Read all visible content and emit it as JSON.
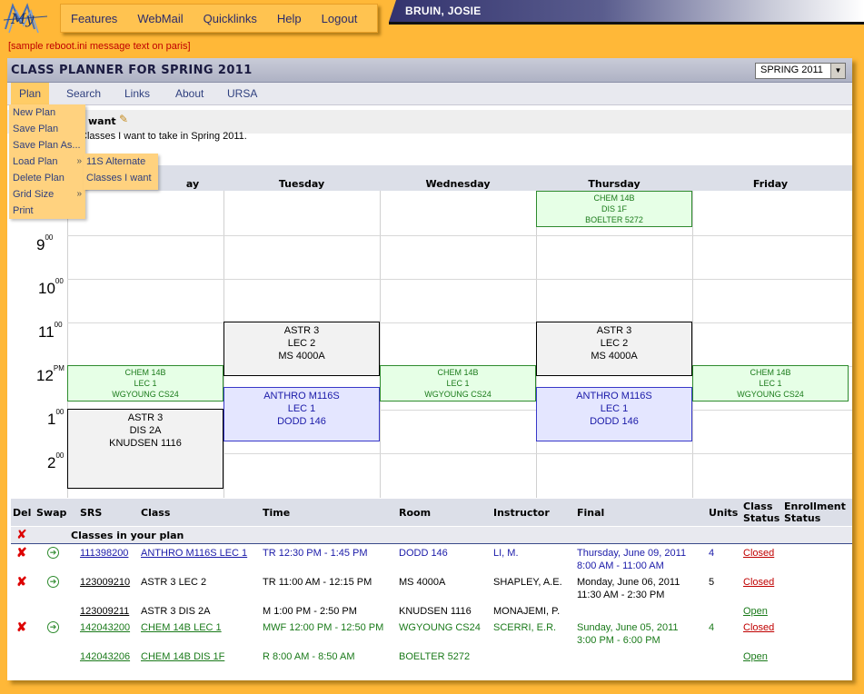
{
  "logo_text": "My",
  "topnav": [
    "Features",
    "WebMail",
    "Quicklinks",
    "Help",
    "Logout"
  ],
  "user_name": "BRUIN, JOSIE",
  "reboot_message": "[sample reboot.ini message text on paris]",
  "planner": {
    "title": "CLASS PLANNER FOR SPRING 2011",
    "term_select": "SPRING 2011"
  },
  "subnav": [
    "Plan",
    "Search",
    "Links",
    "About",
    "URSA"
  ],
  "plan_menu": [
    "New Plan",
    "Save Plan",
    "Save Plan As...",
    "Load Plan",
    "Delete Plan",
    "Grid Size",
    "Print"
  ],
  "load_submenu": [
    "11S Alternate",
    "Classes I want"
  ],
  "plan_header": {
    "title": "want",
    "description": "Classes I want to take in Spring 2011."
  },
  "days": [
    "Monday",
    "Tuesday",
    "Wednesday",
    "Thursday",
    "Friday"
  ],
  "day_monday_visible": "ay",
  "hours": [
    {
      "num": "9",
      "sup": "00"
    },
    {
      "num": "10",
      "sup": "00"
    },
    {
      "num": "11",
      "sup": "00"
    },
    {
      "num": "12",
      "sup": "PM"
    },
    {
      "num": "1",
      "sup": "00"
    },
    {
      "num": "2",
      "sup": "00"
    }
  ],
  "calendar_blocks": {
    "thu_chem_dis": [
      "CHEM 14B",
      "DIS 1F",
      "BOELTER 5272"
    ],
    "tue_astr_lec": [
      "ASTR 3",
      "LEC 2",
      "MS 4000A"
    ],
    "thu_astr_lec": [
      "ASTR 3",
      "LEC 2",
      "MS 4000A"
    ],
    "mon_chem_lec": [
      "CHEM 14B",
      "LEC 1",
      "WGYOUNG CS24"
    ],
    "wed_chem_lec": [
      "CHEM 14B",
      "LEC 1",
      "WGYOUNG CS24"
    ],
    "fri_chem_lec": [
      "CHEM 14B",
      "LEC 1",
      "WGYOUNG CS24"
    ],
    "tue_anthro": [
      "ANTHRO M116S",
      "LEC 1",
      "DODD 146"
    ],
    "thu_anthro": [
      "ANTHRO M116S",
      "LEC 1",
      "DODD 146"
    ],
    "mon_astr_dis": [
      "ASTR 3",
      "DIS 2A",
      "KNUDSEN 1116"
    ]
  },
  "table": {
    "headers": {
      "del": "Del",
      "swap": "Swap",
      "srs": "SRS",
      "class": "Class",
      "time": "Time",
      "room": "Room",
      "instructor": "Instructor",
      "final": "Final",
      "units": "Units",
      "class_status_1": "Class",
      "class_status_2": "Status",
      "enroll_status_1": "Enrollment",
      "enroll_status_2": "Status"
    },
    "group_label": "Classes in your plan",
    "rows": [
      {
        "srs": "111398200",
        "class": "ANTHRO M116S LEC 1",
        "time": "TR 12:30 PM - 1:45 PM",
        "room": "DODD 146",
        "instructor": "LI, M.",
        "final_1": "Thursday, June 09, 2011",
        "final_2": "8:00 AM - 11:00 AM",
        "units": "4",
        "status": "Closed"
      },
      {
        "srs": "123009210",
        "class": "ASTR 3 LEC 2",
        "time": "TR 11:00 AM - 12:15 PM",
        "room": "MS 4000A",
        "instructor": "SHAPLEY, A.E.",
        "final_1": "Monday, June 06, 2011",
        "final_2": "11:30 AM - 2:30 PM",
        "units": "5",
        "status": "Closed"
      },
      {
        "srs": "123009211",
        "class": "ASTR 3 DIS 2A",
        "time": "M 1:00 PM - 2:50 PM",
        "room": "KNUDSEN 1116",
        "instructor": "MONAJEMI, P.",
        "final_1": "",
        "final_2": "",
        "units": "",
        "status": "Open"
      },
      {
        "srs": "142043200",
        "class": "CHEM 14B LEC 1",
        "time": "MWF 12:00 PM - 12:50 PM",
        "room": "WGYOUNG CS24",
        "instructor": "SCERRI, E.R.",
        "final_1": "Sunday, June 05, 2011",
        "final_2": "3:00 PM - 6:00 PM",
        "units": "4",
        "status": "Closed"
      },
      {
        "srs": "142043206",
        "class": "CHEM 14B DIS 1F",
        "time": "R 8:00 AM - 8:50 AM",
        "room": "BOELTER 5272",
        "instructor": "",
        "final_1": "",
        "final_2": "",
        "units": "",
        "status": "Open"
      }
    ]
  },
  "colors": {
    "page_bg": "#ffb838",
    "accent": "#2e3f7e",
    "closed": "#c00000",
    "open": "#1a7a1a"
  }
}
